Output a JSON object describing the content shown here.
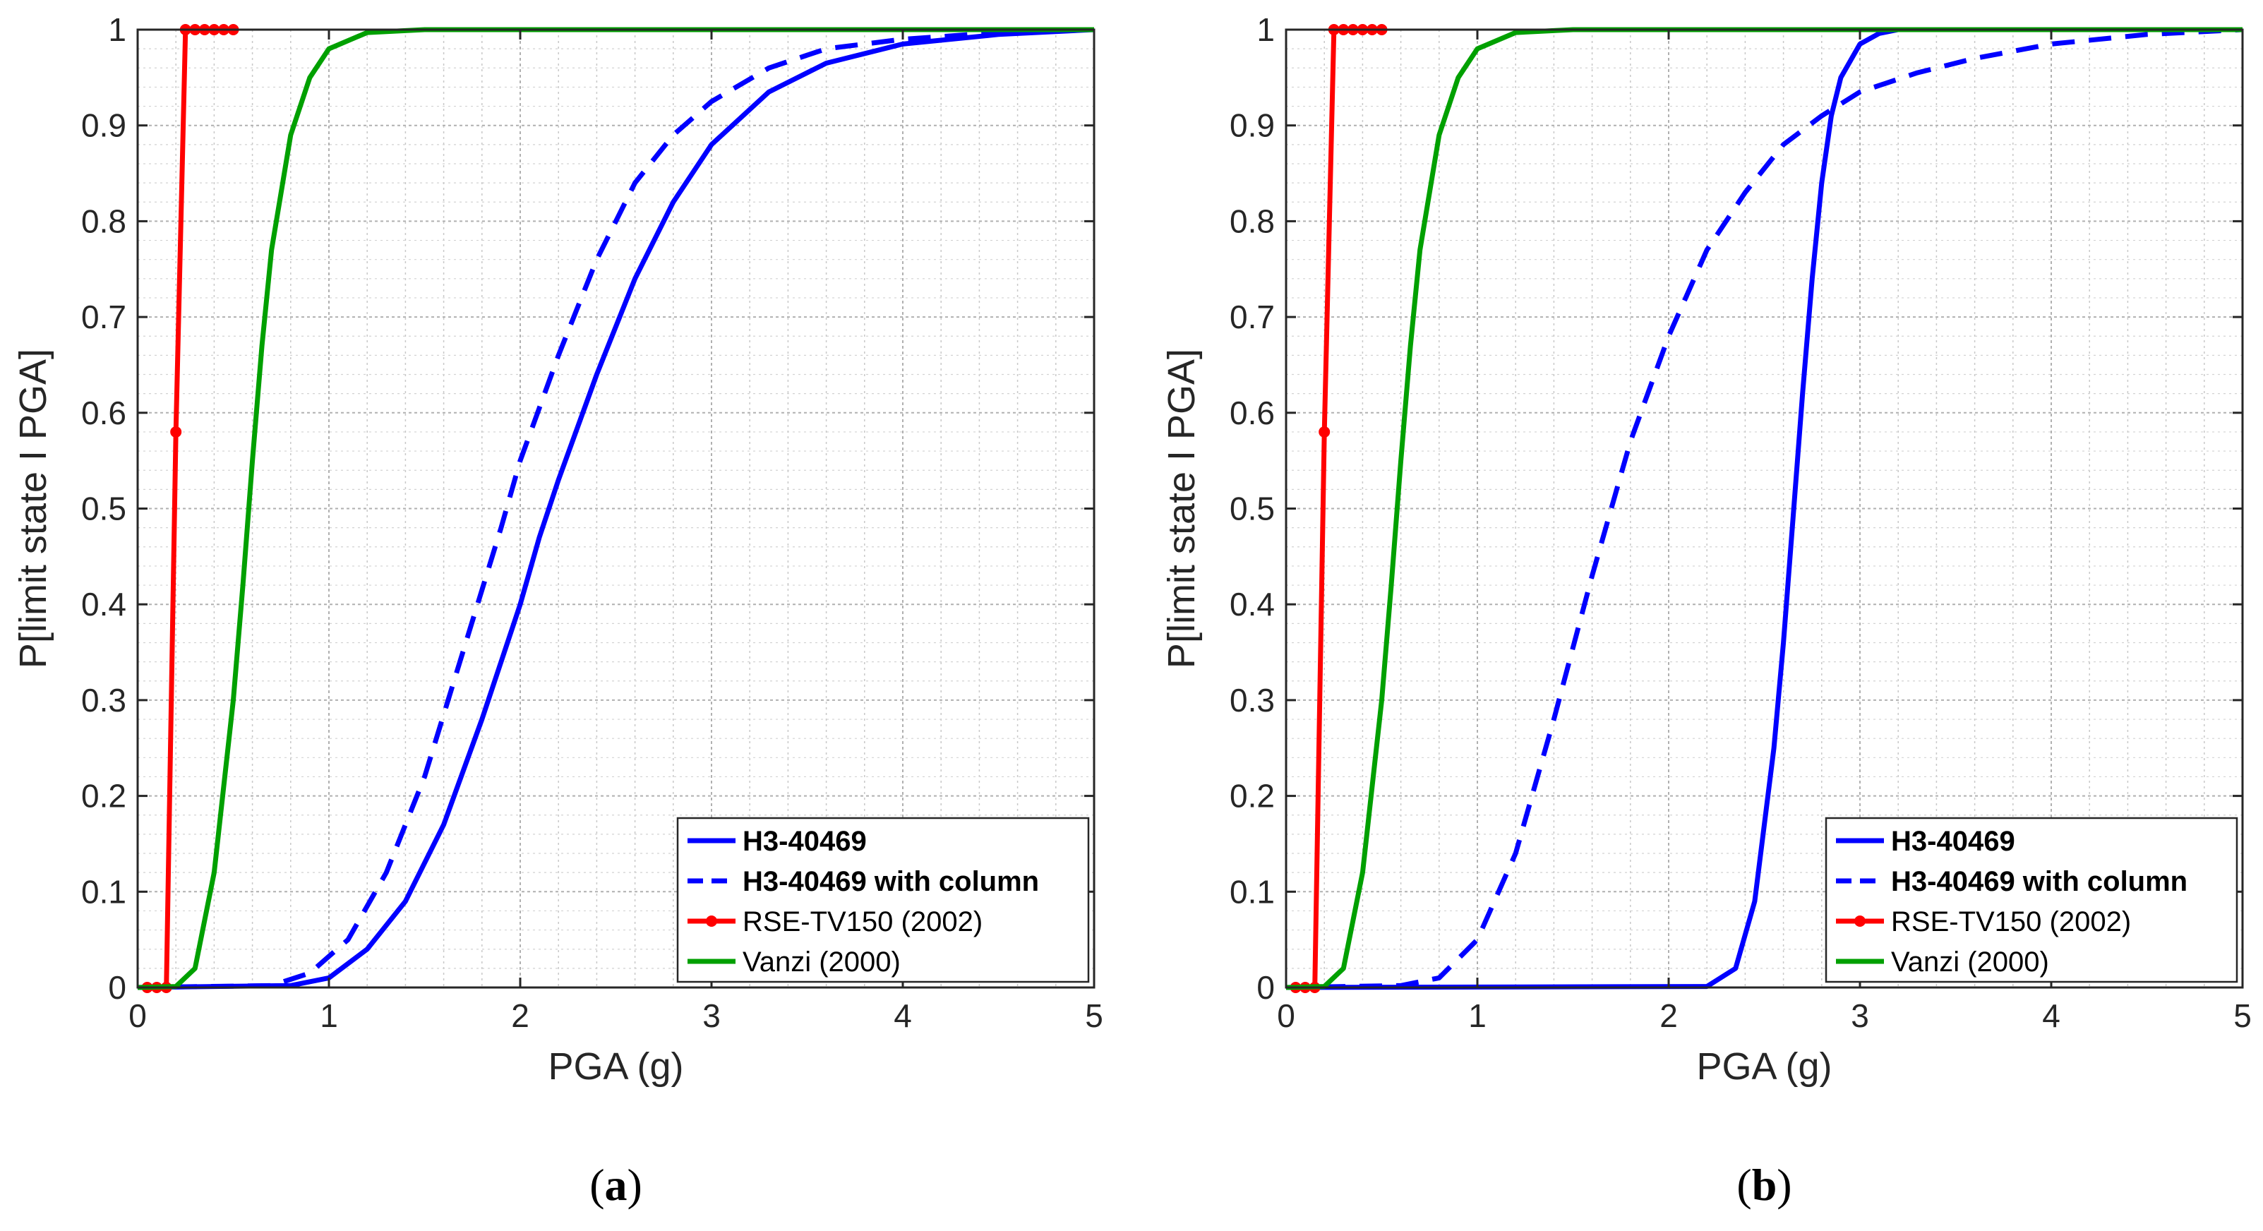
{
  "chart_data": [
    {
      "type": "line",
      "panel_label": "a",
      "xlabel": "PGA (g)",
      "ylabel": "P[limit state I PGA]",
      "xlim": [
        0,
        5
      ],
      "ylim": [
        0,
        1
      ],
      "xticks": [
        0,
        1,
        2,
        3,
        4,
        5
      ],
      "yticks": [
        0,
        0.1,
        0.2,
        0.3,
        0.4,
        0.5,
        0.6,
        0.7,
        0.8,
        0.9,
        1
      ],
      "ytick_labels": [
        "0",
        "0.1",
        "0.2",
        "0.3",
        "0.4",
        "0.5",
        "0.6",
        "0.7",
        "0.8",
        "0.9",
        "1"
      ],
      "grid": true,
      "legend_position": "bottom-right",
      "series": [
        {
          "name": "H3-40469",
          "color": "#0000ff",
          "style": "solid",
          "bold_label": true,
          "x": [
            0,
            0.8,
            1.0,
            1.2,
            1.4,
            1.6,
            1.8,
            2.0,
            2.1,
            2.2,
            2.4,
            2.6,
            2.8,
            3.0,
            3.3,
            3.6,
            4.0,
            4.5,
            5.0
          ],
          "y": [
            0,
            0.002,
            0.01,
            0.04,
            0.09,
            0.17,
            0.28,
            0.4,
            0.47,
            0.53,
            0.64,
            0.74,
            0.82,
            0.88,
            0.935,
            0.965,
            0.985,
            0.995,
            1.0
          ]
        },
        {
          "name": "H3-40469 with column",
          "color": "#0000ff",
          "style": "dashed",
          "bold_label": true,
          "x": [
            0,
            0.7,
            0.9,
            1.1,
            1.3,
            1.5,
            1.7,
            1.9,
            2.0,
            2.2,
            2.4,
            2.6,
            2.8,
            3.0,
            3.3,
            3.6,
            4.0,
            4.5,
            5.0
          ],
          "y": [
            0,
            0.002,
            0.015,
            0.05,
            0.12,
            0.22,
            0.35,
            0.48,
            0.55,
            0.66,
            0.76,
            0.84,
            0.89,
            0.925,
            0.96,
            0.98,
            0.99,
            0.997,
            1.0
          ]
        },
        {
          "name": "RSE-TV150 (2002)",
          "color": "#ff0000",
          "style": "solid-markers",
          "bold_label": false,
          "x": [
            0.05,
            0.1,
            0.15,
            0.2,
            0.25,
            0.3,
            0.35,
            0.4,
            0.45,
            0.5
          ],
          "y": [
            0,
            0,
            0,
            0.58,
            1.0,
            1.0,
            1.0,
            1.0,
            1.0,
            1.0
          ]
        },
        {
          "name": "Vanzi (2000)",
          "color": "#00a000",
          "style": "solid",
          "bold_label": false,
          "x": [
            0,
            0.2,
            0.3,
            0.4,
            0.5,
            0.55,
            0.6,
            0.65,
            0.7,
            0.8,
            0.9,
            1.0,
            1.2,
            1.5,
            5.0
          ],
          "y": [
            0,
            0.001,
            0.02,
            0.12,
            0.3,
            0.42,
            0.55,
            0.67,
            0.77,
            0.89,
            0.95,
            0.98,
            0.997,
            1.0,
            1.0
          ]
        }
      ]
    },
    {
      "type": "line",
      "panel_label": "b",
      "xlabel": "PGA (g)",
      "ylabel": "P[limit state I PGA]",
      "xlim": [
        0,
        5
      ],
      "ylim": [
        0,
        1
      ],
      "xticks": [
        0,
        1,
        2,
        3,
        4,
        5
      ],
      "yticks": [
        0,
        0.1,
        0.2,
        0.3,
        0.4,
        0.5,
        0.6,
        0.7,
        0.8,
        0.9,
        1
      ],
      "ytick_labels": [
        "0",
        "0.1",
        "0.2",
        "0.3",
        "0.4",
        "0.5",
        "0.6",
        "0.7",
        "0.8",
        "0.9",
        "1"
      ],
      "grid": true,
      "legend_position": "bottom-right",
      "series": [
        {
          "name": "H3-40469",
          "color": "#0000ff",
          "style": "solid",
          "bold_label": true,
          "x": [
            0,
            2.2,
            2.35,
            2.45,
            2.55,
            2.6,
            2.65,
            2.7,
            2.75,
            2.8,
            2.85,
            2.9,
            3.0,
            3.1,
            3.2,
            3.4,
            5.0
          ],
          "y": [
            0,
            0.001,
            0.02,
            0.09,
            0.25,
            0.36,
            0.49,
            0.62,
            0.74,
            0.84,
            0.91,
            0.95,
            0.985,
            0.996,
            1.0,
            1.0,
            1.0
          ]
        },
        {
          "name": "H3-40469 with column",
          "color": "#0000ff",
          "style": "dashed",
          "bold_label": true,
          "x": [
            0,
            0.6,
            0.8,
            1.0,
            1.2,
            1.4,
            1.6,
            1.8,
            2.0,
            2.2,
            2.4,
            2.6,
            2.8,
            3.0,
            3.3,
            3.6,
            4.0,
            4.5,
            5.0
          ],
          "y": [
            0,
            0.002,
            0.01,
            0.05,
            0.14,
            0.28,
            0.43,
            0.57,
            0.68,
            0.77,
            0.83,
            0.88,
            0.91,
            0.935,
            0.955,
            0.97,
            0.985,
            0.995,
            1.0
          ]
        },
        {
          "name": "RSE-TV150 (2002)",
          "color": "#ff0000",
          "style": "solid-markers",
          "bold_label": false,
          "x": [
            0.05,
            0.1,
            0.15,
            0.2,
            0.25,
            0.3,
            0.35,
            0.4,
            0.45,
            0.5
          ],
          "y": [
            0,
            0,
            0,
            0.58,
            1.0,
            1.0,
            1.0,
            1.0,
            1.0,
            1.0
          ]
        },
        {
          "name": "Vanzi (2000)",
          "color": "#00a000",
          "style": "solid",
          "bold_label": false,
          "x": [
            0,
            0.2,
            0.3,
            0.4,
            0.5,
            0.55,
            0.6,
            0.65,
            0.7,
            0.8,
            0.9,
            1.0,
            1.2,
            1.5,
            5.0
          ],
          "y": [
            0,
            0.001,
            0.02,
            0.12,
            0.3,
            0.42,
            0.55,
            0.67,
            0.77,
            0.89,
            0.95,
            0.98,
            0.997,
            1.0,
            1.0
          ]
        }
      ]
    }
  ]
}
